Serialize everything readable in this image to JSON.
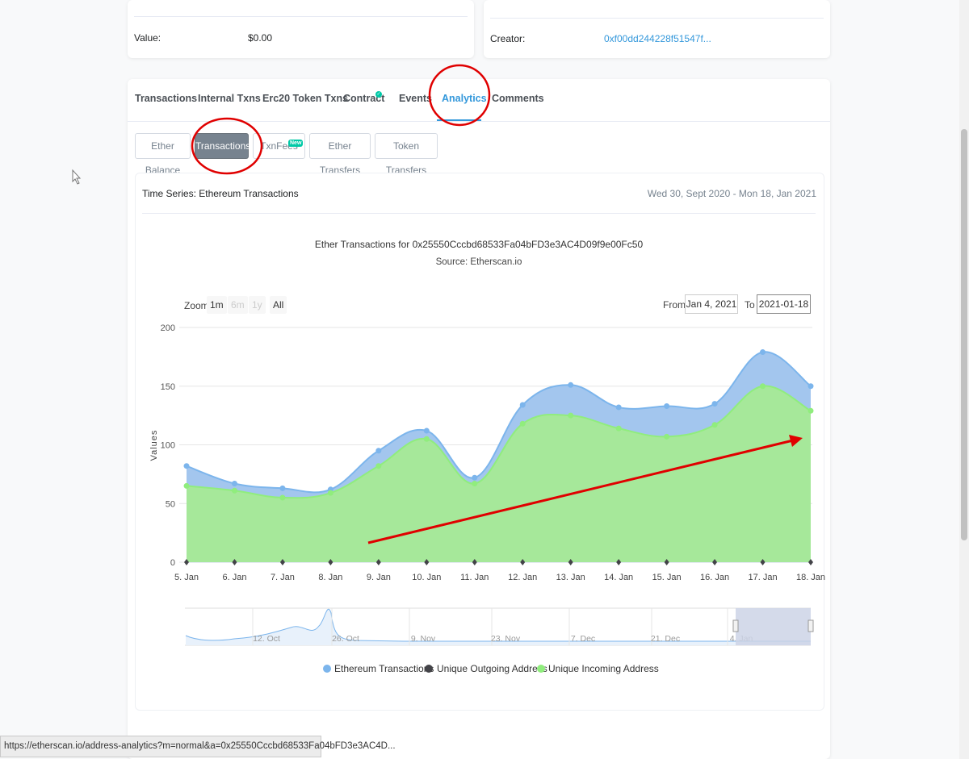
{
  "overview": {
    "value_label": "Value:",
    "value_amount": "$0.00",
    "creator_label": "Creator:",
    "creator_address": "0xf00dd244228f51547f..."
  },
  "tabs": [
    {
      "label": "Transactions"
    },
    {
      "label": "Internal Txns"
    },
    {
      "label": "Erc20 Token Txns"
    },
    {
      "label": "Contract"
    },
    {
      "label": "Events"
    },
    {
      "label": "Analytics"
    },
    {
      "label": "Comments"
    }
  ],
  "subtabs": {
    "ether_balance": "Ether Balance",
    "transactions": "Transactions",
    "txnfees": "TxnFees",
    "txnfees_badge": "New",
    "ether_transfers": "Ether Transfers",
    "token_transfers": "Token Transfers"
  },
  "panel": {
    "title": "Time Series: Ethereum Transactions",
    "date_range": "Wed 30, Sept 2020 - Mon 18, Jan 2021"
  },
  "zoom": {
    "label": "Zoom",
    "buttons": [
      "1m",
      "6m",
      "1y",
      "All"
    ],
    "from_label": "From",
    "from_value": "Jan 4, 2021",
    "to_label": "To",
    "to_value": "2021-01-18"
  },
  "navigator": {
    "labels": [
      "12. Oct",
      "26. Oct",
      "9. Nov",
      "23. Nov",
      "7. Dec",
      "21. Dec",
      "4. Jan"
    ]
  },
  "status_url": "https://etherscan.io/address-analytics?m=normal&a=0x25550Cccbd68533Fa04bFD3e3AC4D...",
  "colors": {
    "transactions": "#7cb5ec",
    "incoming": "#90ed7d",
    "outgoing": "#434348",
    "annotation": "#e00000"
  },
  "chart_data": {
    "type": "area",
    "title": "Ether Transactions for 0x25550Cccbd68533Fa04bFD3e3AC4D09f9e00Fc50",
    "subtitle": "Source: Etherscan.io",
    "ylabel": "Values",
    "ylim": [
      0,
      200
    ],
    "yticks": [
      "0",
      "50",
      "100",
      "150",
      "200"
    ],
    "categories": [
      "5. Jan",
      "6. Jan",
      "7. Jan",
      "8. Jan",
      "9. Jan",
      "10. Jan",
      "11. Jan",
      "12. Jan",
      "13. Jan",
      "14. Jan",
      "15. Jan",
      "16. Jan",
      "17. Jan",
      "18. Jan"
    ],
    "series": [
      {
        "name": "Ethereum Transactions",
        "values": [
          82,
          67,
          63,
          62,
          95,
          112,
          72,
          134,
          151,
          132,
          133,
          135,
          179,
          150
        ]
      },
      {
        "name": "Unique Outgoing Address",
        "values": [
          0,
          0,
          0,
          0,
          0,
          0,
          0,
          0,
          0,
          0,
          0,
          0,
          0,
          0
        ]
      },
      {
        "name": "Unique Incoming Address",
        "values": [
          65,
          61,
          55,
          59,
          82,
          105,
          67,
          118,
          125,
          114,
          107,
          117,
          150,
          129
        ]
      }
    ],
    "grid": true,
    "legend": "bottom"
  }
}
